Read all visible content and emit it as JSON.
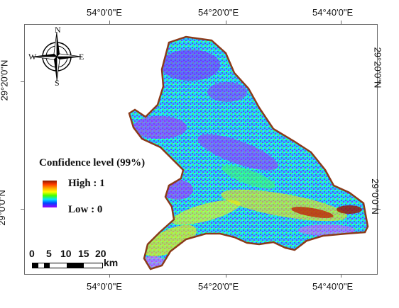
{
  "map": {
    "top_coords": [
      "54°0'0\"E",
      "54°20'0\"E",
      "54°40'0\"E"
    ],
    "bottom_coords": [
      "54°0'0\"E",
      "54°20'0\"E",
      "54°40'0\"E"
    ],
    "left_coords": [
      "29°20'0\"N",
      "29°0'0\"N"
    ],
    "right_coords": [
      "29°20'0\"N",
      "29°0'0\"N"
    ],
    "colors": {
      "border": "#8b3a1a",
      "high": "#8b1a00",
      "low": "#9a00ff"
    }
  },
  "legend": {
    "title": "Confidence level (99%)",
    "high_label": "High : 1",
    "low_label": "Low : 0"
  },
  "scale_bar": {
    "ticks": [
      "0",
      "5",
      "10",
      "15",
      "20"
    ],
    "unit": "km"
  },
  "north_arrow": {
    "n": "N",
    "s": "S",
    "e": "E",
    "w": "W"
  }
}
